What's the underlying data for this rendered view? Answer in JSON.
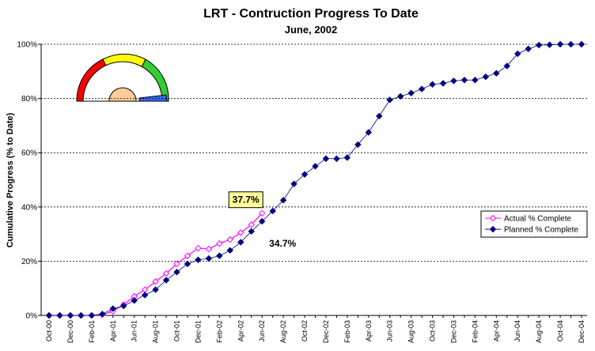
{
  "chart_data": {
    "type": "line",
    "title": "LRT - Contruction Progress To Date",
    "subtitle": "June, 2002",
    "y_label": "Cumulative Progress (% to Date)",
    "categories": [
      "Oct-00",
      null,
      "Dec-00",
      null,
      "Feb-01",
      null,
      "Apr-01",
      null,
      "Jun-01",
      null,
      "Aug-01",
      null,
      "Oct-01",
      null,
      "Dec-01",
      null,
      "Feb-02",
      null,
      "Apr-02",
      null,
      "Jun-02",
      null,
      "Aug-02",
      null,
      "Oct-02",
      null,
      "Dec-02",
      null,
      "Feb-03",
      null,
      "Apr-03",
      null,
      "Jun-03",
      null,
      "Aug-03",
      null,
      "Oct-03",
      null,
      "Dec-03",
      null,
      "Feb-04",
      null,
      "Apr-04",
      null,
      "Jun-04",
      null,
      "Aug-04",
      null,
      "Oct-04",
      null,
      "Dec-04"
    ],
    "series": [
      {
        "name": "Actual % Complete",
        "color": "#ff00ff",
        "marker": "open-diamond",
        "values": [
          0,
          0,
          0,
          0,
          0,
          0.3,
          1.5,
          4,
          7,
          9.5,
          12.5,
          15.5,
          19,
          22,
          24.8,
          24.5,
          26.5,
          28,
          30.5,
          33.5,
          37.7,
          null,
          null,
          null,
          null,
          null,
          null,
          null,
          null,
          null,
          null,
          null,
          null,
          null,
          null,
          null,
          null,
          null,
          null,
          null,
          null,
          null,
          null,
          null,
          null,
          null,
          null,
          null,
          null,
          null,
          null
        ],
        "value_labels": [
          null,
          null,
          null,
          null,
          null,
          null,
          null,
          null,
          null,
          null,
          null,
          null,
          null,
          null,
          null,
          null,
          null,
          null,
          null,
          null,
          "37.7%",
          null,
          null,
          null,
          null,
          null,
          null,
          null,
          null,
          null,
          null,
          null,
          null,
          null,
          null,
          null,
          null,
          null,
          null,
          null,
          null,
          null,
          null,
          null,
          null,
          null,
          null,
          null,
          null,
          null,
          null
        ]
      },
      {
        "name": "Planned % Complete",
        "color": "#000080",
        "marker": "filled-diamond",
        "values": [
          0,
          0,
          0,
          0,
          0,
          0.5,
          2.5,
          3.5,
          5.5,
          7.5,
          9.5,
          13,
          16,
          19,
          20.5,
          21,
          22,
          24,
          27,
          31,
          34.7,
          38.5,
          42.5,
          48.5,
          52,
          55,
          57.8,
          57.8,
          58.2,
          63,
          67.5,
          73.5,
          79.5,
          80.8,
          82,
          83.5,
          85.2,
          85.6,
          86.5,
          86.8,
          86.8,
          88,
          89.3,
          92,
          96.5,
          98.3,
          99.7,
          99.8,
          100,
          100,
          100
        ],
        "value_labels": [
          null,
          null,
          null,
          null,
          null,
          null,
          null,
          null,
          null,
          null,
          null,
          null,
          null,
          null,
          null,
          null,
          null,
          null,
          null,
          null,
          "34.7%",
          null,
          null,
          null,
          null,
          null,
          null,
          null,
          null,
          null,
          null,
          null,
          null,
          null,
          null,
          null,
          null,
          null,
          null,
          null,
          null,
          null,
          null,
          null,
          null,
          null,
          null,
          null,
          null,
          null,
          null
        ]
      }
    ],
    "ylim": [
      0,
      100
    ],
    "yticks": [
      {
        "value": 0,
        "label": "0%"
      },
      {
        "value": 20,
        "label": "20%"
      },
      {
        "value": 40,
        "label": "40%"
      },
      {
        "value": 60,
        "label": "60%"
      },
      {
        "value": 80,
        "label": "80%"
      },
      {
        "value": 100,
        "label": "100%"
      }
    ],
    "grid": true,
    "legend": "right"
  }
}
